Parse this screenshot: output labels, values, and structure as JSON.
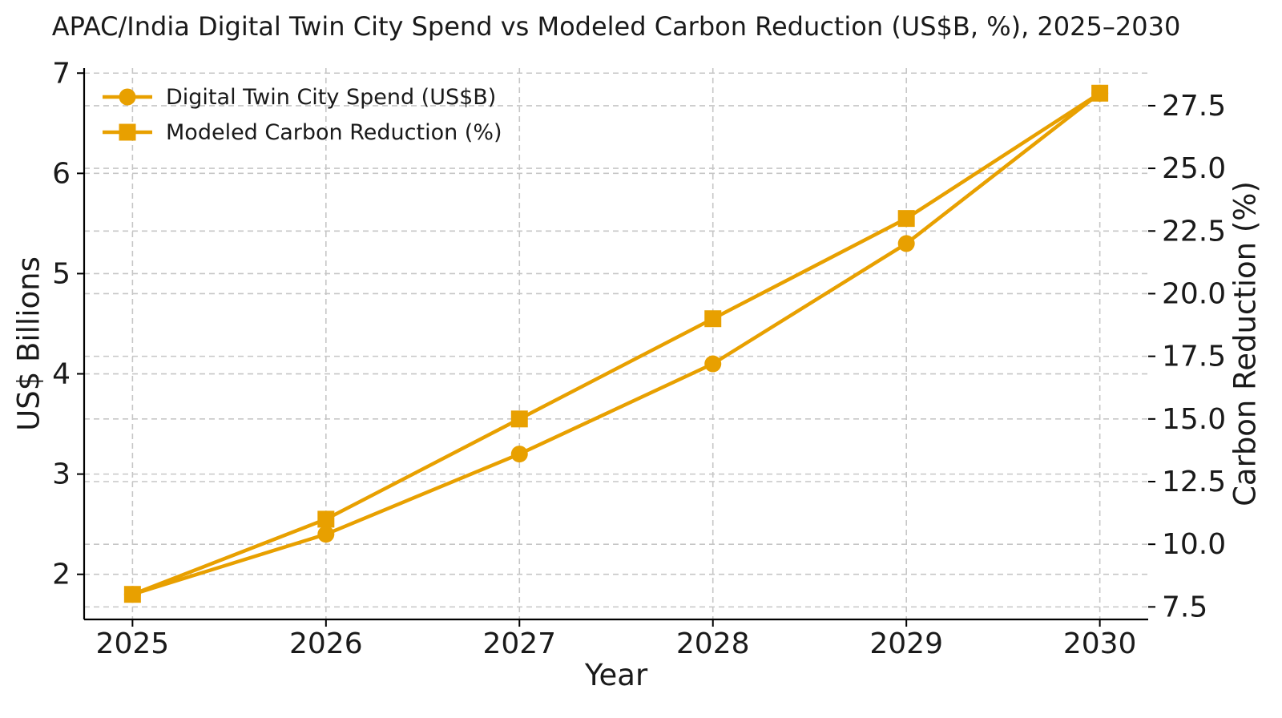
{
  "chart_data": {
    "type": "line",
    "title": "APAC/India Digital Twin City Spend vs Modeled Carbon Reduction (US$B, %), 2025–2030",
    "xlabel": "Year",
    "ylabel_left": "US$ Billions",
    "ylabel_right": "Carbon Reduction (%)",
    "x": [
      2025,
      2026,
      2027,
      2028,
      2029,
      2030
    ],
    "series": [
      {
        "name": "Digital Twin City Spend (US$B)",
        "axis": "left",
        "marker": "circle",
        "values": [
          1.8,
          2.4,
          3.2,
          4.1,
          5.3,
          6.8
        ]
      },
      {
        "name": "Modeled Carbon Reduction (%)",
        "axis": "right",
        "marker": "square",
        "values": [
          8,
          11,
          15,
          19,
          23,
          28
        ]
      }
    ],
    "xlim": [
      2024.75,
      2030.25
    ],
    "ylim_left": [
      1.55,
      7.05
    ],
    "ylim_right": [
      7.0,
      29.0
    ],
    "xtick_labels": [
      "2025",
      "2026",
      "2027",
      "2028",
      "2029",
      "2030"
    ],
    "xtick_values": [
      2025,
      2026,
      2027,
      2028,
      2029,
      2030
    ],
    "ytick_labels_left": [
      "2",
      "3",
      "4",
      "5",
      "6",
      "7"
    ],
    "ytick_values_left": [
      2,
      3,
      4,
      5,
      6,
      7
    ],
    "ytick_labels_right": [
      "7.5",
      "10.0",
      "12.5",
      "15.0",
      "17.5",
      "20.0",
      "22.5",
      "25.0",
      "27.5"
    ],
    "ytick_values_right": [
      7.5,
      10.0,
      12.5,
      15.0,
      17.5,
      20.0,
      22.5,
      25.0,
      27.5
    ],
    "grid": true,
    "legend_position": "upper-left",
    "colors": {
      "series": "#E8A000",
      "grid": "#c6c6c6",
      "spine": "#000000",
      "text": "#1a1a1a",
      "background": "#ffffff"
    }
  }
}
